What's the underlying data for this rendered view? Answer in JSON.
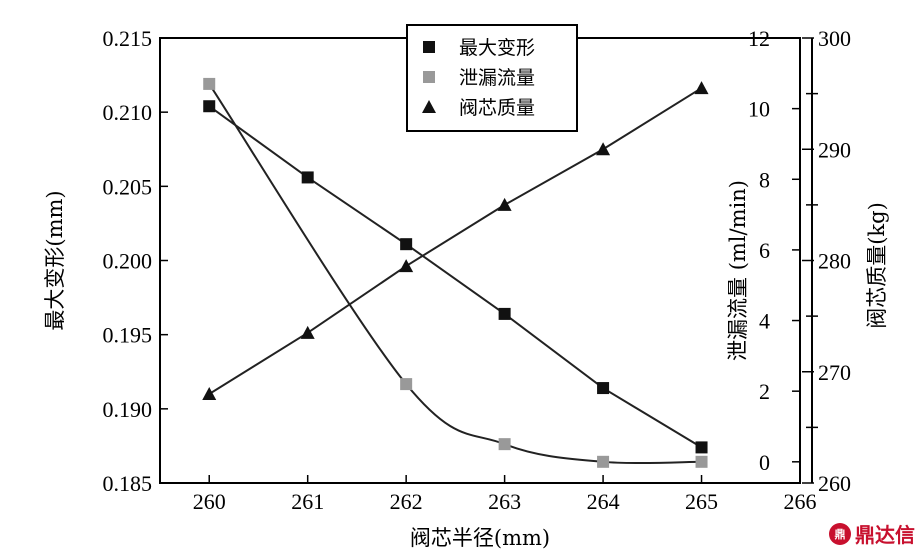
{
  "chart_data": {
    "type": "line",
    "xlabel": "阀芯半径(mm)",
    "x": [
      260,
      261,
      262,
      263,
      264,
      265
    ],
    "xlim": [
      259.5,
      266
    ],
    "xticks": [
      260,
      261,
      262,
      263,
      264,
      265,
      266
    ],
    "axes": {
      "left": {
        "label": "最大变形(mm)",
        "range": [
          0.185,
          0.215
        ],
        "ticks": [
          "0.185",
          "0.190",
          "0.195",
          "0.200",
          "0.205",
          "0.210",
          "0.215"
        ]
      },
      "right1": {
        "label": "泄漏流量 (ml/min)",
        "range": [
          -0.6,
          12
        ],
        "ticks": [
          "0",
          "2",
          "4",
          "6",
          "8",
          "10",
          "12"
        ]
      },
      "right2": {
        "label": "阀芯质量(kg)",
        "range": [
          260,
          300
        ],
        "ticks": [
          "260",
          "270",
          "280",
          "290",
          "300"
        ]
      }
    },
    "series": [
      {
        "name": "最大变形",
        "axis": "left",
        "marker": "square",
        "color": "#111111",
        "smooth": false,
        "values": [
          0.2104,
          0.2056,
          0.2011,
          0.1964,
          0.1914,
          0.1874
        ]
      },
      {
        "name": "泄漏流量",
        "axis": "right1",
        "marker": "square",
        "color": "#999999",
        "smooth": true,
        "values": [
          10.7,
          null,
          2.2,
          0.5,
          0.0,
          0.0
        ]
      },
      {
        "name": "阀芯质量",
        "axis": "right2",
        "marker": "triangle",
        "color": "#111111",
        "smooth": false,
        "values": [
          268.0,
          273.5,
          279.5,
          285.0,
          290.0,
          295.5
        ]
      }
    ],
    "legend_position": "top-center",
    "grid": false
  },
  "watermark": {
    "logo": "鼎",
    "text": "鼎达信"
  }
}
